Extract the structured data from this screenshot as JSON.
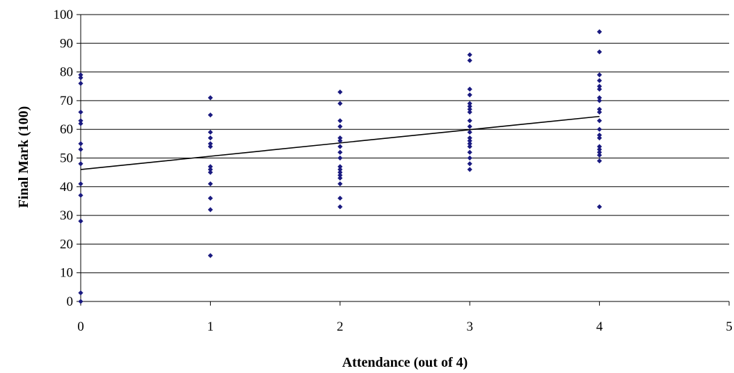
{
  "chart_data": {
    "type": "scatter",
    "title": "",
    "xlabel": "Attendance (out of 4)",
    "ylabel": "Final Mark (100)",
    "xlim": [
      0,
      5
    ],
    "ylim": [
      0,
      100
    ],
    "x_ticks": [
      "0",
      "1",
      "2",
      "3",
      "4",
      "5"
    ],
    "y_ticks": [
      "0",
      "10",
      "20",
      "30",
      "40",
      "50",
      "60",
      "70",
      "80",
      "90",
      "100"
    ],
    "grid": "horizontal",
    "legend": "none",
    "marker_color": "#1a1a80",
    "trendline_color": "#000000",
    "series": [
      {
        "points": [
          [
            0,
            0
          ],
          [
            0,
            3
          ],
          [
            0,
            28
          ],
          [
            0,
            37
          ],
          [
            0,
            41
          ],
          [
            0,
            48
          ],
          [
            0,
            53
          ],
          [
            0,
            55
          ],
          [
            0,
            62
          ],
          [
            0,
            63
          ],
          [
            0,
            66
          ],
          [
            0,
            76
          ],
          [
            0,
            78
          ],
          [
            0,
            79
          ],
          [
            1,
            16
          ],
          [
            1,
            32
          ],
          [
            1,
            36
          ],
          [
            1,
            41
          ],
          [
            1,
            45
          ],
          [
            1,
            46
          ],
          [
            1,
            47
          ],
          [
            1,
            54
          ],
          [
            1,
            55
          ],
          [
            1,
            57
          ],
          [
            1,
            59
          ],
          [
            1,
            65
          ],
          [
            1,
            71
          ],
          [
            2,
            33
          ],
          [
            2,
            36
          ],
          [
            2,
            41
          ],
          [
            2,
            43
          ],
          [
            2,
            44
          ],
          [
            2,
            45
          ],
          [
            2,
            46
          ],
          [
            2,
            47
          ],
          [
            2,
            50
          ],
          [
            2,
            52
          ],
          [
            2,
            54
          ],
          [
            2,
            56
          ],
          [
            2,
            57
          ],
          [
            2,
            61
          ],
          [
            2,
            63
          ],
          [
            2,
            69
          ],
          [
            2,
            73
          ],
          [
            3,
            46
          ],
          [
            3,
            48
          ],
          [
            3,
            50
          ],
          [
            3,
            52
          ],
          [
            3,
            54
          ],
          [
            3,
            55
          ],
          [
            3,
            56
          ],
          [
            3,
            57
          ],
          [
            3,
            59
          ],
          [
            3,
            61
          ],
          [
            3,
            63
          ],
          [
            3,
            66
          ],
          [
            3,
            67
          ],
          [
            3,
            68
          ],
          [
            3,
            69
          ],
          [
            3,
            72
          ],
          [
            3,
            74
          ],
          [
            3,
            84
          ],
          [
            3,
            86
          ],
          [
            4,
            33
          ],
          [
            4,
            49
          ],
          [
            4,
            51
          ],
          [
            4,
            52
          ],
          [
            4,
            53
          ],
          [
            4,
            54
          ],
          [
            4,
            57
          ],
          [
            4,
            58
          ],
          [
            4,
            60
          ],
          [
            4,
            63
          ],
          [
            4,
            66
          ],
          [
            4,
            67
          ],
          [
            4,
            70
          ],
          [
            4,
            71
          ],
          [
            4,
            74
          ],
          [
            4,
            75
          ],
          [
            4,
            77
          ],
          [
            4,
            79
          ],
          [
            4,
            87
          ],
          [
            4,
            94
          ]
        ]
      }
    ],
    "trendline": {
      "x": [
        0,
        4
      ],
      "y": [
        46,
        64.5
      ]
    }
  }
}
